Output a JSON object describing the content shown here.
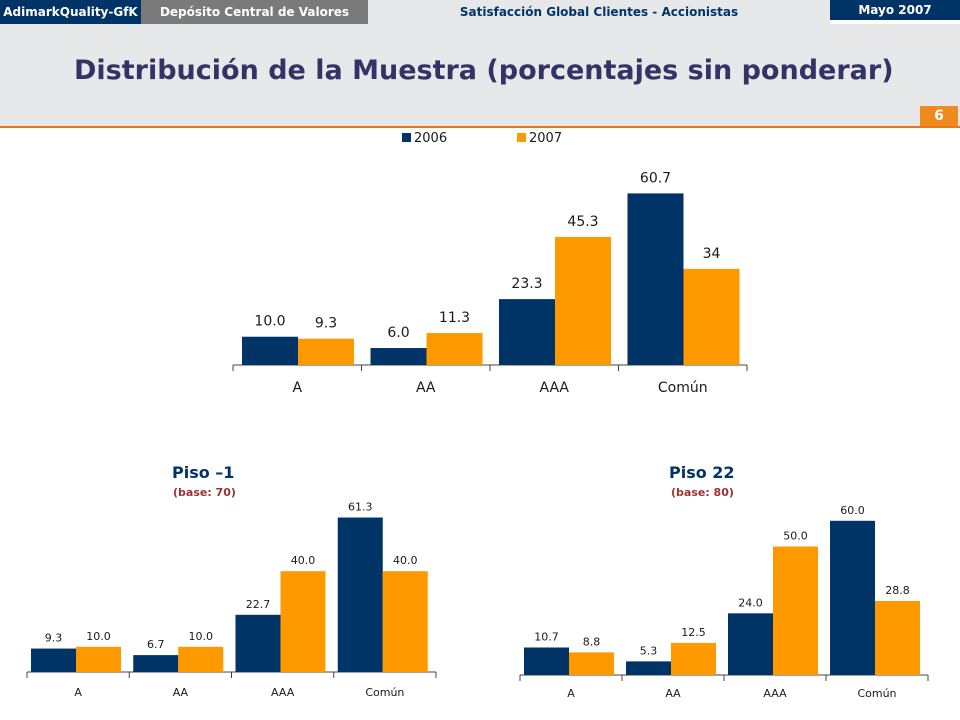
{
  "topbar": {
    "brand": "AdimarkQuality-GfK",
    "client": "Depósito Central de Valores",
    "study": "Satisfacción Global Clientes - Accionistas",
    "date": "Mayo 2007"
  },
  "page": {
    "title": "Distribución de la Muestra (porcentajes sin ponderar)",
    "number": "6"
  },
  "legend": {
    "s2006": "2006",
    "s2007": "2007"
  },
  "colors": {
    "s2006": "#003366",
    "s2007": "#ff9900",
    "accent": "#e87722",
    "title": "#333366",
    "base_text": "#993333"
  },
  "panels": [
    {
      "title": "",
      "base": ""
    },
    {
      "title": "Piso –1",
      "base": "(base: 70)"
    },
    {
      "title": "Piso 22",
      "base": "(base: 80)"
    }
  ],
  "chart_data": [
    {
      "type": "bar",
      "categories": [
        "A",
        "AA",
        "AAA",
        "Común"
      ],
      "series": [
        {
          "name": "2006",
          "values": [
            10.0,
            6.0,
            23.3,
            60.7
          ],
          "labels": [
            "10.0",
            "6.0",
            "23.3",
            "60.7"
          ]
        },
        {
          "name": "2007",
          "values": [
            9.3,
            11.3,
            45.3,
            34
          ],
          "labels": [
            "9.3",
            "11.3",
            "45.3",
            "34"
          ]
        }
      ],
      "ylim": [
        0,
        70
      ],
      "grid": false,
      "legend": "top-center"
    },
    {
      "type": "bar",
      "title": "Piso –1",
      "subtitle": "(base: 70)",
      "categories": [
        "A",
        "AA",
        "AAA",
        "Común"
      ],
      "series": [
        {
          "name": "2006",
          "values": [
            9.3,
            6.7,
            22.7,
            61.3
          ],
          "labels": [
            "9.3",
            "6.7",
            "22.7",
            "61.3"
          ]
        },
        {
          "name": "2007",
          "values": [
            10.0,
            10.0,
            40.0,
            40.0
          ],
          "labels": [
            "10.0",
            "10.0",
            "40.0",
            "40.0"
          ]
        }
      ],
      "ylim": [
        0,
        70
      ],
      "grid": false
    },
    {
      "type": "bar",
      "title": "Piso 22",
      "subtitle": "(base: 80)",
      "categories": [
        "A",
        "AA",
        "AAA",
        "Común"
      ],
      "series": [
        {
          "name": "2006",
          "values": [
            10.7,
            5.3,
            24.0,
            60.0
          ],
          "labels": [
            "10.7",
            "5.3",
            "24.0",
            "60.0"
          ]
        },
        {
          "name": "2007",
          "values": [
            8.8,
            12.5,
            50.0,
            28.8
          ],
          "labels": [
            "8.8",
            "12.5",
            "50.0",
            "28.8"
          ]
        }
      ],
      "ylim": [
        0,
        70
      ],
      "grid": false
    }
  ]
}
